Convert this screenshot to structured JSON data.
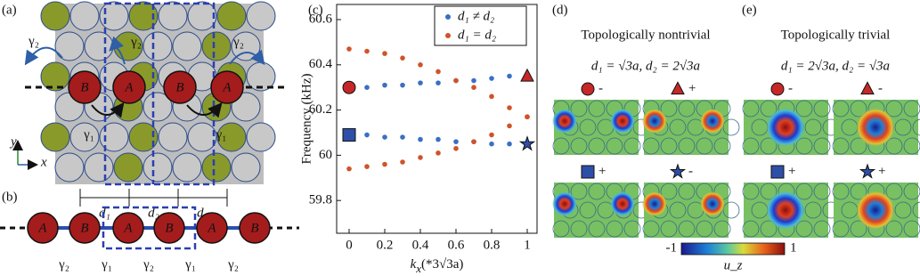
{
  "chart_data": {
    "type": "scatter",
    "panel_label": "(c)",
    "ylabel": "Frequency (kHz)",
    "xlabel": {
      "main": "k",
      "sub": "x",
      "rest": "(*3√3a)"
    },
    "xlim": [
      -0.07,
      1.055
    ],
    "xticks": [
      0,
      0.2,
      0.4,
      0.6,
      0.8,
      1
    ],
    "ylim": [
      59.655,
      60.667
    ],
    "yticks": [
      59.8,
      60,
      60.2,
      60.4,
      60.6
    ],
    "legend": "upper right",
    "series": [
      {
        "name": "d₁ ≠ d₂",
        "color": "#3a6fc4",
        "x": [
          0.1,
          0.2,
          0.3,
          0.4,
          0.5,
          0.6,
          0.7,
          0.8,
          0.9,
          0.1,
          0.2,
          0.3,
          0.4,
          0.5,
          0.6,
          0.7,
          0.8,
          0.9
        ],
        "values": [
          60.3,
          60.31,
          60.31,
          60.32,
          60.32,
          60.33,
          60.33,
          60.34,
          60.35,
          60.09,
          60.08,
          60.08,
          60.07,
          60.07,
          60.06,
          60.06,
          60.05,
          60.05
        ]
      },
      {
        "name": "d₁ = d₂",
        "color": "#d0532a",
        "x": [
          0,
          0.1,
          0.2,
          0.3,
          0.4,
          0.5,
          0.6,
          0.7,
          0.8,
          0.9,
          1,
          0,
          0.1,
          0.2,
          0.3,
          0.4,
          0.5,
          0.6,
          0.7,
          0.8,
          0.9,
          1
        ],
        "values": [
          60.47,
          60.46,
          60.45,
          60.43,
          60.4,
          60.37,
          60.33,
          60.3,
          60.26,
          60.21,
          60.17,
          59.94,
          59.95,
          59.96,
          59.97,
          59.99,
          60.01,
          60.03,
          60.06,
          60.09,
          60.13,
          60.17
        ]
      }
    ],
    "special_points": [
      {
        "shape": "circle",
        "color": "#c62828",
        "x": 0,
        "value": 60.3
      },
      {
        "shape": "square",
        "color": "#2e4fa8",
        "x": 0,
        "value": 60.09
      },
      {
        "shape": "triangle",
        "color": "#c62828",
        "x": 1,
        "value": 60.35
      },
      {
        "shape": "star",
        "color": "#2e4fa8",
        "x": 1,
        "value": 60.05
      }
    ]
  },
  "panel_a": {
    "label": "(a)",
    "gamma_top": [
      "γ₂",
      "γ₂",
      "γ₂"
    ],
    "gamma_bottom": [
      "γ₁",
      "γ₁"
    ],
    "sites": [
      "B",
      "A",
      "B",
      "A"
    ],
    "axes": [
      "y",
      "x"
    ],
    "distances": [
      "d₁",
      "d₂",
      "d₁"
    ]
  },
  "panel_b": {
    "label": "(b)",
    "sites": [
      "A",
      "B",
      "A",
      "B",
      "A",
      "B"
    ],
    "couplings": [
      "γ₂",
      "γ₁",
      "γ₂",
      "γ₁",
      "γ₂"
    ]
  },
  "panel_d": {
    "label": "(d)",
    "title": "Topologically nontrivial",
    "formula": "d₁ = √3a, d₂ = 2√3a",
    "signs": [
      "-",
      "+",
      "+",
      "-"
    ]
  },
  "panel_e": {
    "label": "(e)",
    "title": "Topologically trivial",
    "formula": "d₁ = 2√3a, d₂ = √3a",
    "signs": [
      "-",
      "-",
      "+",
      "+"
    ]
  },
  "colorbar": {
    "min_label": "-1",
    "max_label": "1",
    "label": "u_z"
  }
}
